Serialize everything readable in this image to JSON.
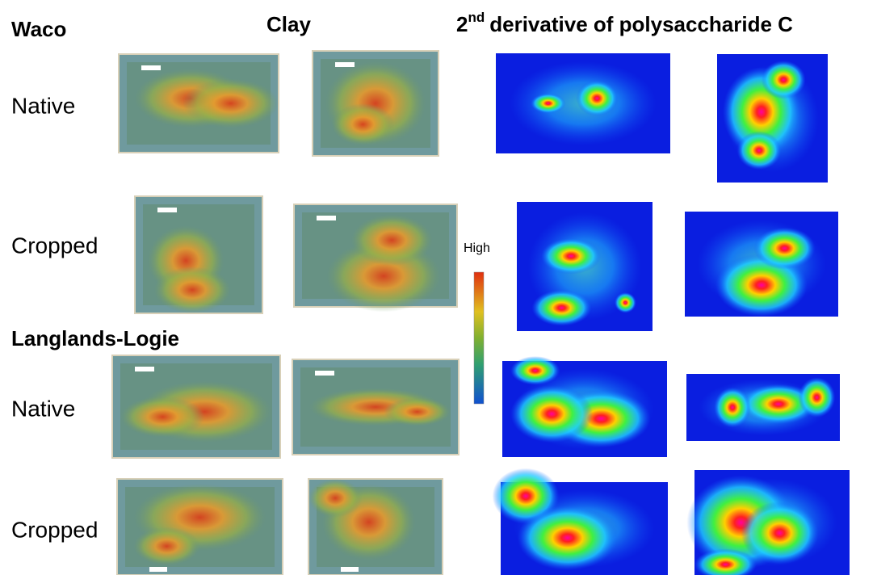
{
  "headers": {
    "site_1": "Waco",
    "clay": "Clay",
    "derivative": {
      "number": "2",
      "superscript": "nd",
      "rest": "derivative of polysaccharide C"
    },
    "site_2": "Langlands-Logie"
  },
  "rows": [
    "Native",
    "Cropped",
    "Native",
    "Cropped"
  ],
  "colorbar": {
    "label": "High"
  }
}
